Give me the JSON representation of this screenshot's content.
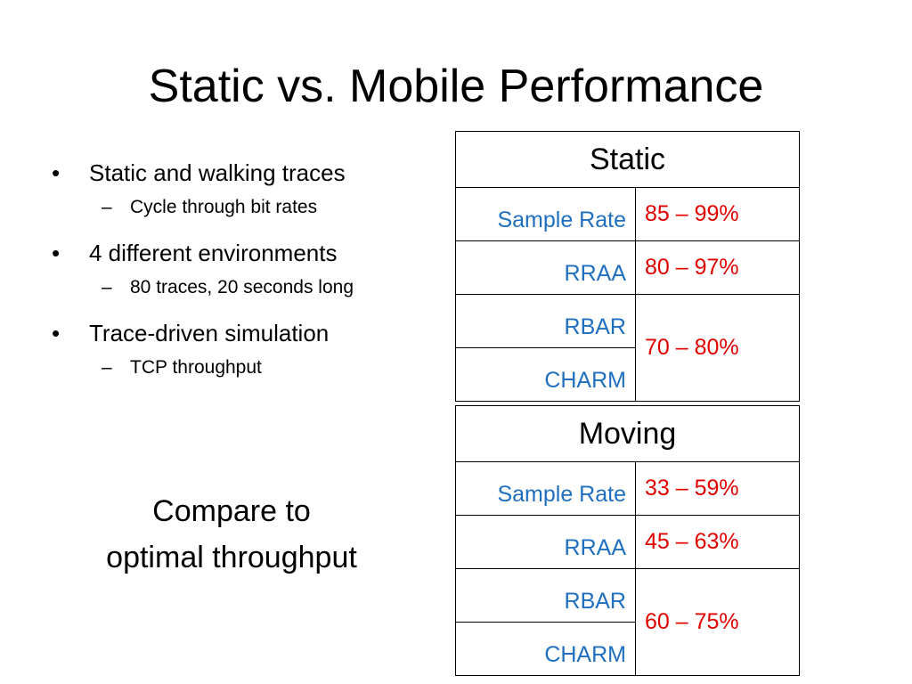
{
  "slide": {
    "title": "Static vs. Mobile Performance",
    "bullets": [
      {
        "text": "Static and walking traces",
        "sub": "Cycle through bit rates"
      },
      {
        "text": "4 different environments",
        "sub": "80 traces, 20 seconds long"
      },
      {
        "text": "Trace-driven simulation",
        "sub": "TCP throughput"
      }
    ],
    "bullet_marker": "•",
    "sub_marker": "–",
    "compare_line1": "Compare to",
    "compare_line2": "optimal throughput"
  },
  "tables": {
    "static": {
      "header": "Static",
      "rows": [
        {
          "name": "Sample Rate",
          "value": "85 – 99%"
        },
        {
          "name": "RRAA",
          "value": "80 – 97%"
        },
        {
          "name": "RBAR",
          "value": "70 – 80%"
        },
        {
          "name": "CHARM"
        }
      ]
    },
    "moving": {
      "header": "Moving",
      "rows": [
        {
          "name": "Sample Rate",
          "value": "33 – 59%"
        },
        {
          "name": "RRAA",
          "value": "45 – 63%"
        },
        {
          "name": "RBAR",
          "value": "60 – 75%"
        },
        {
          "name": "CHARM"
        }
      ]
    }
  },
  "colors": {
    "algorithm": "#1F6FC0",
    "value": "#E00000",
    "text": "#000000"
  }
}
